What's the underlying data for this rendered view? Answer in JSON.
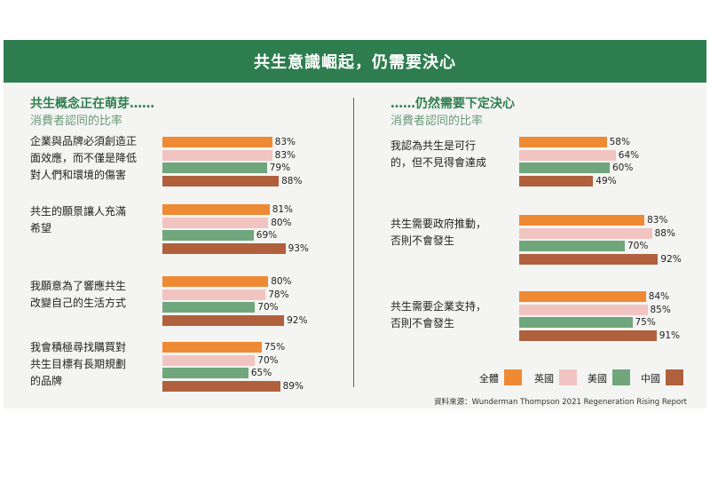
{
  "title": "共生意識崛起，仍需要決心",
  "source": "資料來源：Wunderman Thompson 2021 Regeneration Rising Report",
  "colors": {
    "全體": "#ef8a34",
    "英國": "#f2c4c1",
    "美國": "#6fa67c",
    "中國": "#b0603d"
  },
  "chart_data": [
    {
      "type": "bar",
      "orientation": "horizontal",
      "heading": "共生概念正在萌芽……",
      "subheading": "消費者認同的比率",
      "series_names": [
        "全體",
        "英國",
        "美國",
        "中國"
      ],
      "unit": "%",
      "categories": [
        {
          "label": [
            "企業與品牌必須創造正",
            "面效應，而不僅是降低",
            "對人們和環境的傷害"
          ],
          "values": [
            83,
            83,
            79,
            88
          ]
        },
        {
          "label": [
            "共生的願景讓人充滿",
            "希望"
          ],
          "values": [
            81,
            80,
            69,
            93
          ]
        },
        {
          "label": [
            "我願意為了響應共生",
            "改變自己的生活方式"
          ],
          "values": [
            80,
            78,
            70,
            92
          ]
        },
        {
          "label": [
            "我會積極尋找購買對",
            "共生目標有長期規劃",
            "的品牌"
          ],
          "values": [
            75,
            70,
            65,
            89
          ]
        }
      ]
    },
    {
      "type": "bar",
      "orientation": "horizontal",
      "heading": "……仍然需要下定決心",
      "subheading": "消費者認同的比率",
      "series_names": [
        "全體",
        "英國",
        "美國",
        "中國"
      ],
      "unit": "%",
      "categories": [
        {
          "label": [
            "我認為共生是可行",
            "的，但不見得會達成"
          ],
          "values": [
            58,
            64,
            60,
            49
          ]
        },
        {
          "label": [
            "共生需要政府推動，",
            "否則不會發生"
          ],
          "values": [
            83,
            88,
            70,
            92
          ]
        },
        {
          "label": [
            "共生需要企業支持，",
            "否則不會發生"
          ],
          "values": [
            84,
            85,
            75,
            91
          ]
        }
      ]
    }
  ],
  "legend": [
    "全體",
    "英國",
    "美國",
    "中國"
  ]
}
